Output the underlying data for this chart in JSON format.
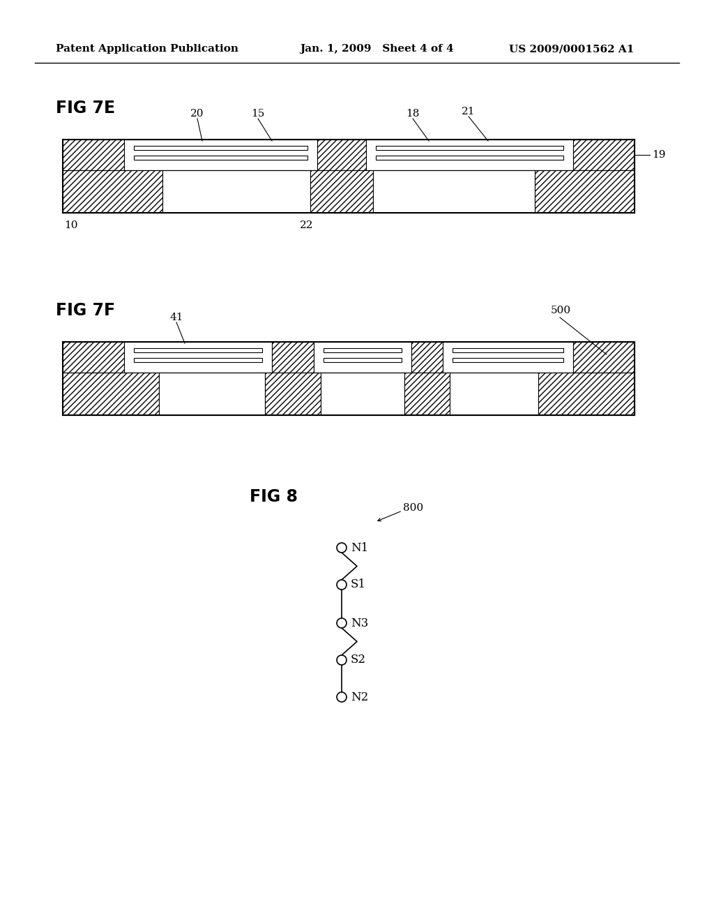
{
  "bg_color": "#ffffff",
  "text_color": "#000000",
  "header_left": "Patent Application Publication",
  "header_center": "Jan. 1, 2009   Sheet 4 of 4",
  "header_right": "US 2009/0001562 A1",
  "fig7e_label": "FIG 7E",
  "fig7f_label": "FIG 7F",
  "fig8_label": "FIG 8",
  "fig8_number": "800",
  "label_fontsize": 11,
  "header_fontsize": 11,
  "fig_label_fontsize": 17
}
